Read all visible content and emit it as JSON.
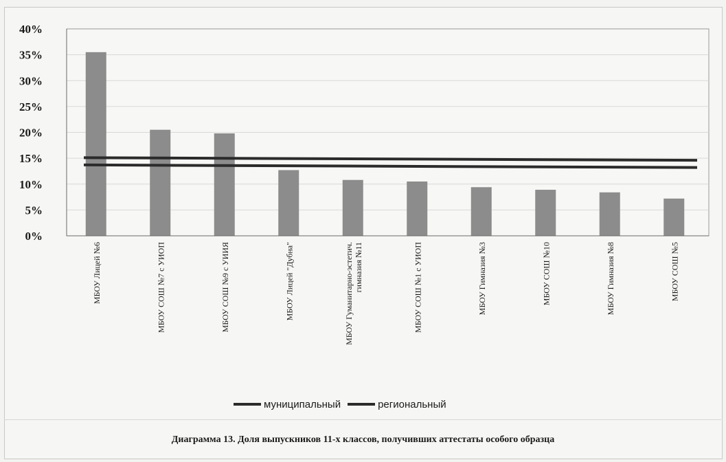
{
  "chart_data": {
    "type": "bar",
    "categories": [
      "МБОУ Лицей №6",
      "МБОУ СОШ №7 с УИОП",
      "МБОУ СОШ №9 с УИИЯ",
      "МБОУ Лицей \"Дубна\"",
      "МБОУ Гуманитарно-эстетич. гимназия №11",
      "МБОУ СОШ №1 с УИОП",
      "МБОУ Гимназия №3",
      "МБОУ СОШ №10",
      "МБОУ Гимназия №8",
      "МБОУ СОШ №5"
    ],
    "category_lines": [
      [
        "МБОУ Лицей №6"
      ],
      [
        "МБОУ СОШ №7 с УИОП"
      ],
      [
        "МБОУ СОШ №9 с УИИЯ"
      ],
      [
        "МБОУ Лицей \"Дубна\""
      ],
      [
        "МБОУ Гуманитарно-эстетич.",
        "гимназия №11"
      ],
      [
        "МБОУ СОШ №1 с УИОП"
      ],
      [
        "МБОУ Гимназия №3"
      ],
      [
        "МБОУ СОШ №10"
      ],
      [
        "МБОУ Гимназия №8"
      ],
      [
        "МБОУ СОШ №5"
      ]
    ],
    "values": [
      35.5,
      20.5,
      19.8,
      12.7,
      10.8,
      10.5,
      9.4,
      8.9,
      8.4,
      7.2
    ],
    "reference_lines": [
      {
        "name": "муниципальный",
        "start": 15.1,
        "end": 14.6
      },
      {
        "name": "региональный",
        "start": 13.7,
        "end": 13.2
      }
    ],
    "ylim": [
      0,
      40
    ],
    "yticks": [
      "0%",
      "5%",
      "10%",
      "15%",
      "20%",
      "25%",
      "30%",
      "35%",
      "40%"
    ],
    "grid": true,
    "legend": "bottom",
    "title": "Диаграмма 13. Доля выпускников 11-х классов, получивших аттестаты особого образца",
    "colors": {
      "bars": "#8c8c8c",
      "lines": "#2b2b2b",
      "grid": "#d8d8d6"
    }
  }
}
